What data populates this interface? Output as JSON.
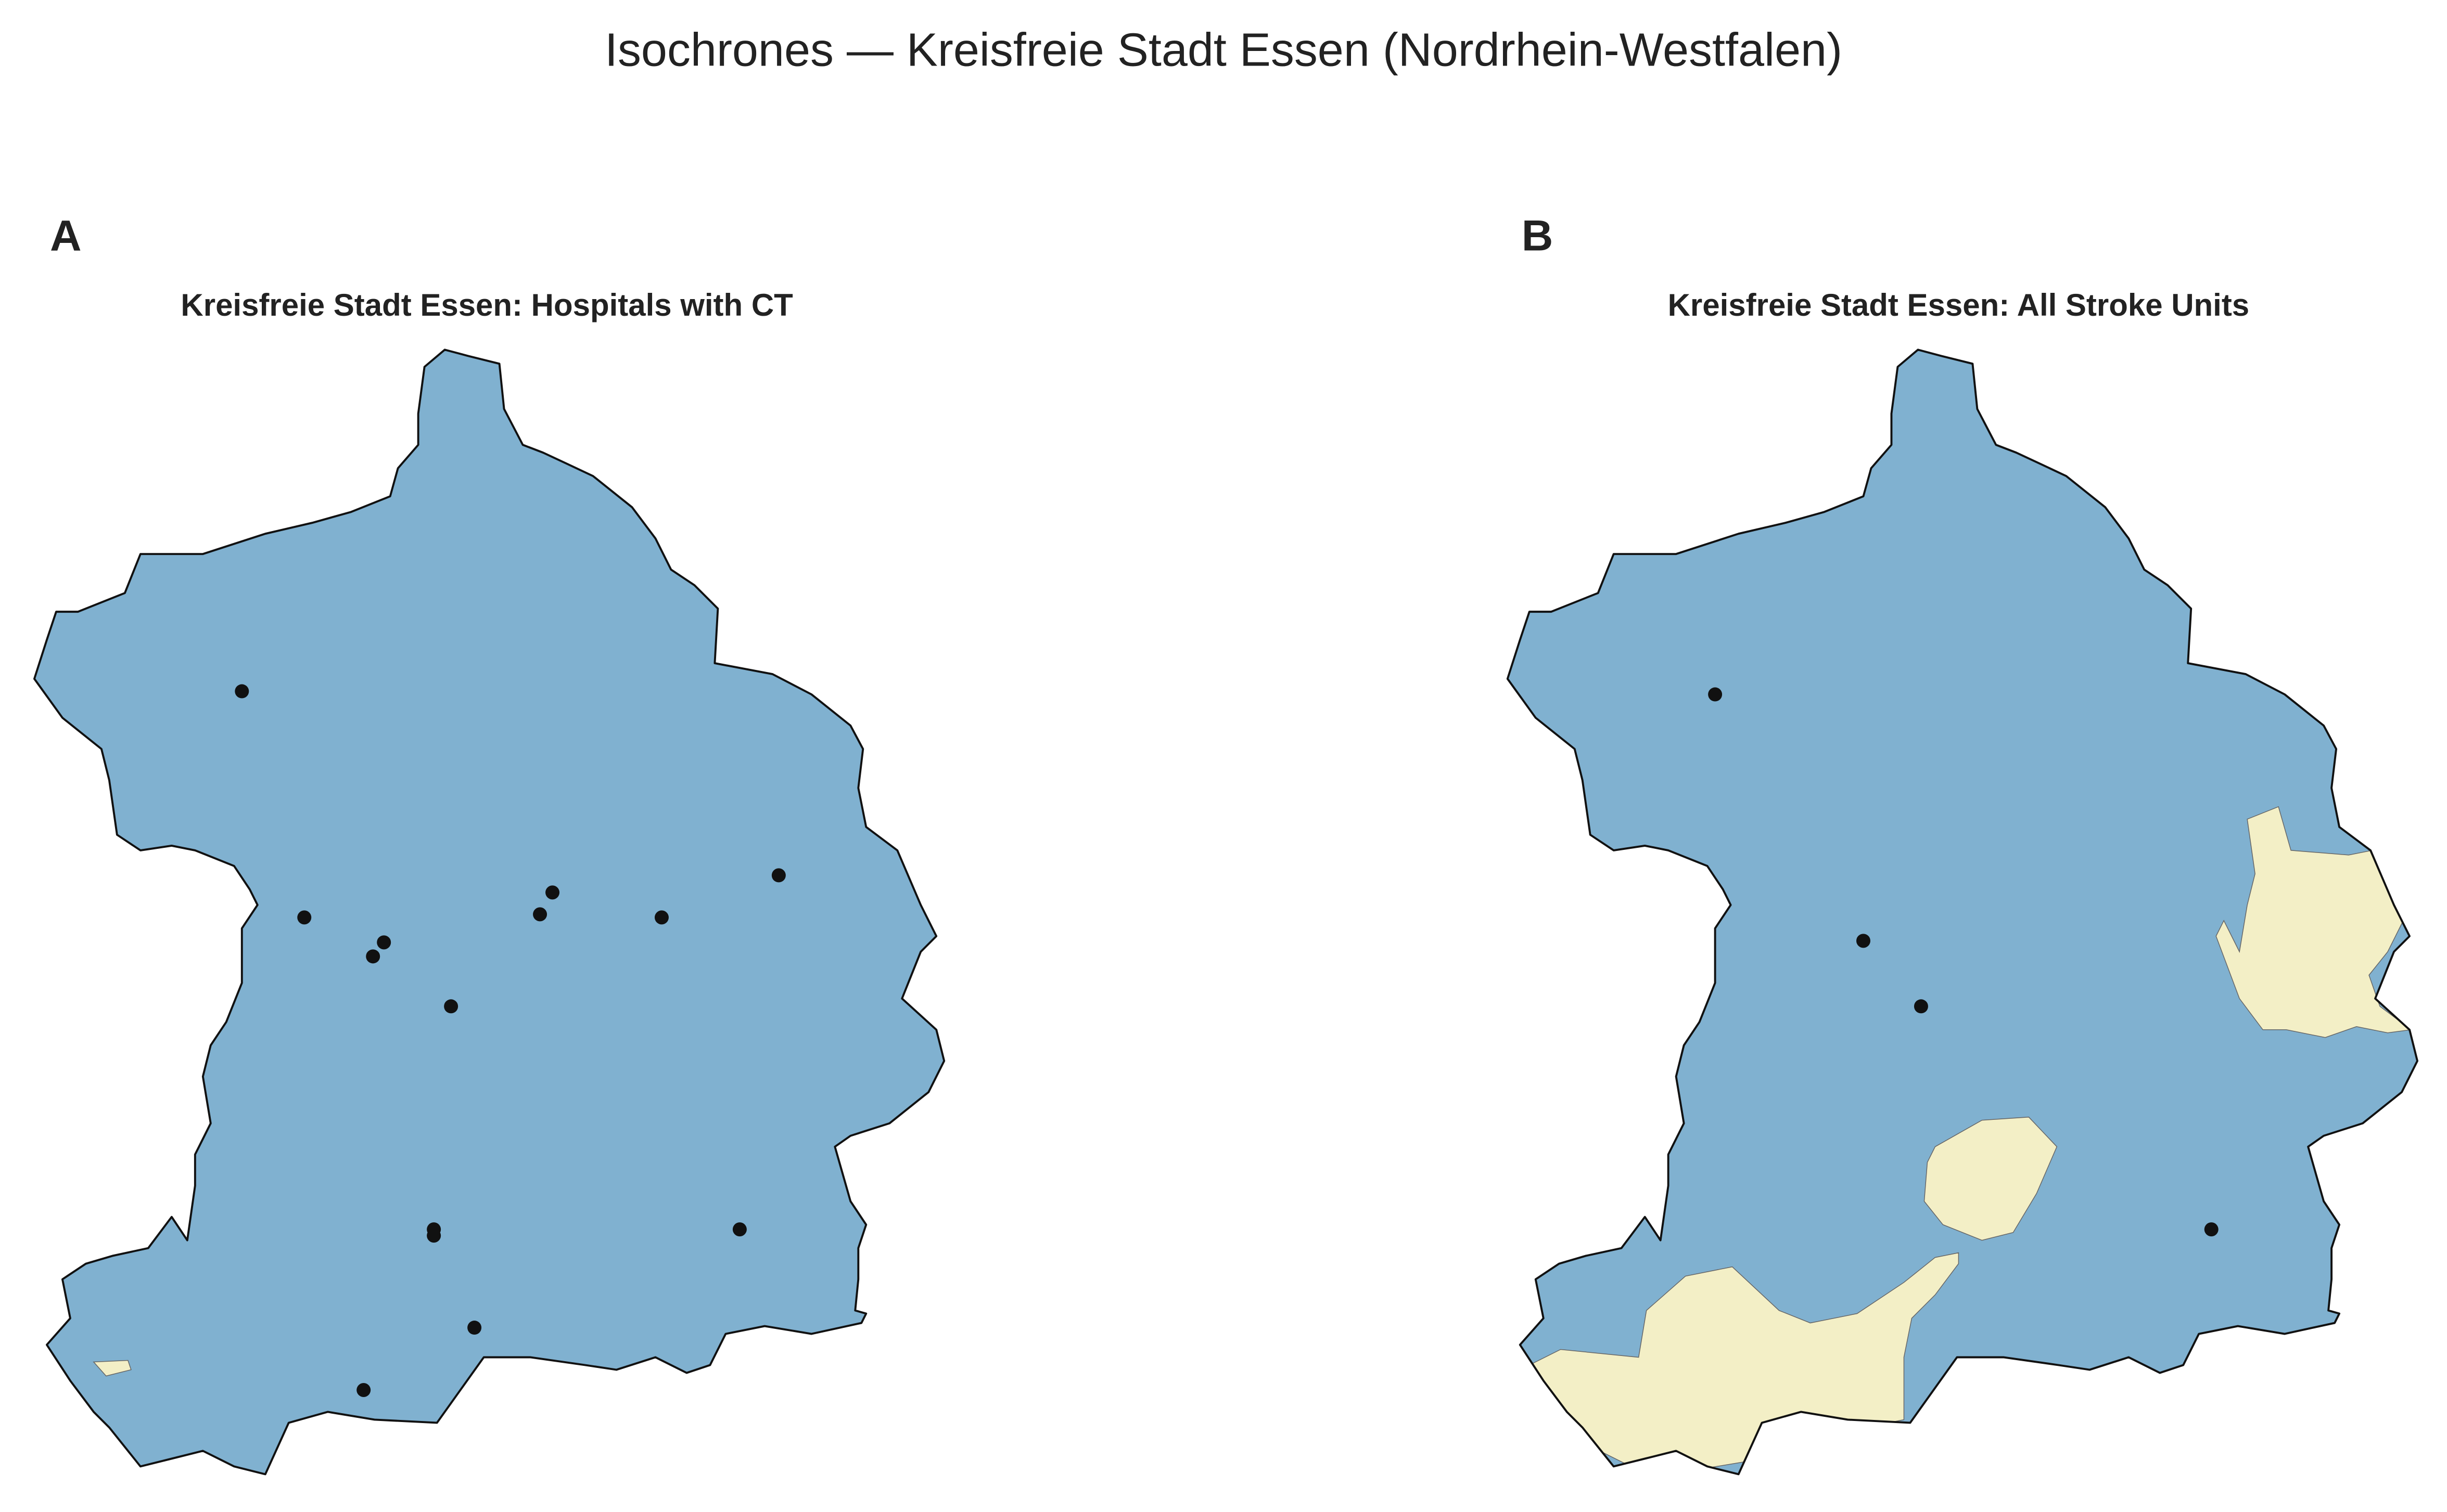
{
  "title": "Isochrones — Kreisfreie Stadt Essen (Nordrhein-Westfalen)",
  "panels": [
    {
      "label": "A",
      "title": "Kreisfreie Stadt Essen: Hospitals with CT"
    },
    {
      "label": "B",
      "title": "Kreisfreie Stadt Essen: All Stroke Units"
    }
  ]
}
